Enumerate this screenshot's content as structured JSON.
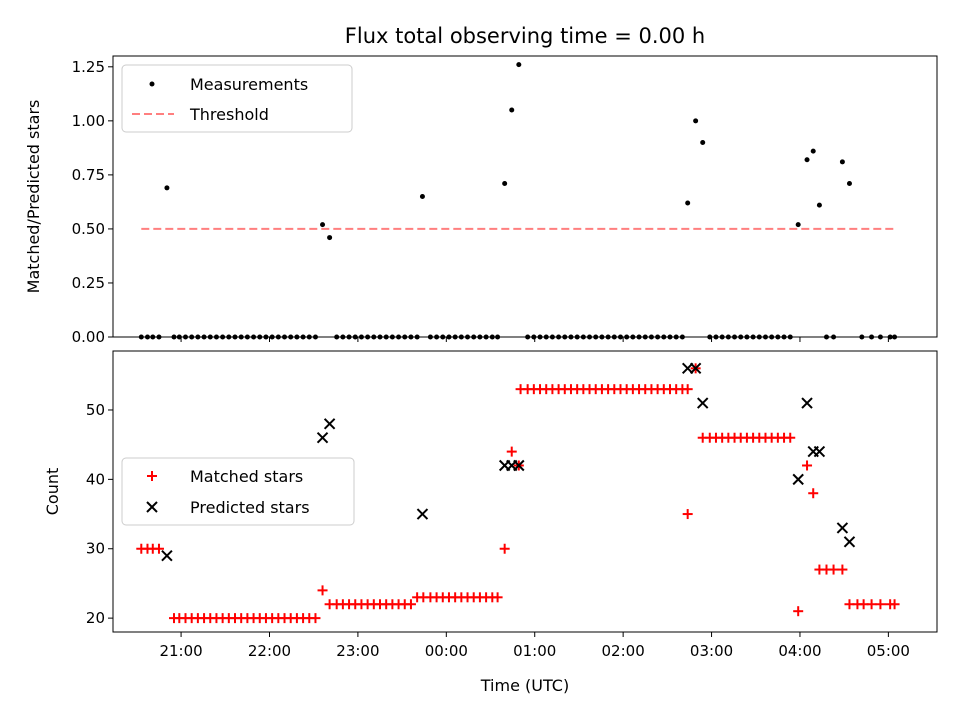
{
  "chart_data": [
    {
      "type": "scatter",
      "title": "Flux total observing time = 0.00 h",
      "xlabel": "",
      "ylabel": "Matched/Predicted stars",
      "ylim": [
        0,
        1.3
      ],
      "yticks": [
        "0.00",
        "0.25",
        "0.50",
        "0.75",
        "1.00",
        "1.25"
      ],
      "ytick_values": [
        0,
        0.25,
        0.5,
        0.75,
        1.0,
        1.25
      ],
      "x_unit": "hours since 20:00 UTC",
      "xlim": [
        0.23,
        9.55
      ],
      "legend": {
        "placement": "upper left",
        "entries": [
          "Measurements",
          "Threshold"
        ]
      },
      "series": [
        {
          "name": "Measurements",
          "marker": "dot",
          "color": "#000000",
          "points": [
            [
              0.55,
              0
            ],
            [
              0.62,
              0
            ],
            [
              0.68,
              0
            ],
            [
              0.75,
              0
            ],
            [
              0.84,
              0.69
            ],
            [
              0.92,
              0
            ],
            [
              0.98,
              0
            ],
            [
              1.05,
              0
            ],
            [
              1.12,
              0
            ],
            [
              1.19,
              0
            ],
            [
              1.26,
              0
            ],
            [
              1.33,
              0
            ],
            [
              1.4,
              0
            ],
            [
              1.47,
              0
            ],
            [
              1.54,
              0
            ],
            [
              1.61,
              0
            ],
            [
              1.68,
              0
            ],
            [
              1.75,
              0
            ],
            [
              1.82,
              0
            ],
            [
              1.89,
              0
            ],
            [
              1.96,
              0
            ],
            [
              2.03,
              0
            ],
            [
              2.1,
              0
            ],
            [
              2.17,
              0
            ],
            [
              2.24,
              0
            ],
            [
              2.31,
              0
            ],
            [
              2.38,
              0
            ],
            [
              2.45,
              0
            ],
            [
              2.52,
              0
            ],
            [
              2.6,
              0.52
            ],
            [
              2.68,
              0.46
            ],
            [
              2.76,
              0
            ],
            [
              2.83,
              0
            ],
            [
              2.9,
              0
            ],
            [
              2.97,
              0
            ],
            [
              3.04,
              0
            ],
            [
              3.11,
              0
            ],
            [
              3.18,
              0
            ],
            [
              3.25,
              0
            ],
            [
              3.32,
              0
            ],
            [
              3.39,
              0
            ],
            [
              3.46,
              0
            ],
            [
              3.53,
              0
            ],
            [
              3.6,
              0
            ],
            [
              3.67,
              0
            ],
            [
              3.73,
              0.65
            ],
            [
              3.82,
              0
            ],
            [
              3.89,
              0
            ],
            [
              3.96,
              0
            ],
            [
              4.03,
              0
            ],
            [
              4.1,
              0
            ],
            [
              4.17,
              0
            ],
            [
              4.24,
              0
            ],
            [
              4.31,
              0
            ],
            [
              4.38,
              0
            ],
            [
              4.45,
              0
            ],
            [
              4.52,
              0
            ],
            [
              4.58,
              0
            ],
            [
              4.66,
              0.71
            ],
            [
              4.74,
              1.05
            ],
            [
              4.82,
              1.26
            ],
            [
              4.92,
              0
            ],
            [
              4.99,
              0
            ],
            [
              5.06,
              0
            ],
            [
              5.13,
              0
            ],
            [
              5.2,
              0
            ],
            [
              5.27,
              0
            ],
            [
              5.34,
              0
            ],
            [
              5.41,
              0
            ],
            [
              5.48,
              0
            ],
            [
              5.55,
              0
            ],
            [
              5.62,
              0
            ],
            [
              5.69,
              0
            ],
            [
              5.76,
              0
            ],
            [
              5.83,
              0
            ],
            [
              5.9,
              0
            ],
            [
              5.97,
              0
            ],
            [
              6.04,
              0
            ],
            [
              6.11,
              0
            ],
            [
              6.18,
              0
            ],
            [
              6.25,
              0
            ],
            [
              6.32,
              0
            ],
            [
              6.39,
              0
            ],
            [
              6.46,
              0
            ],
            [
              6.53,
              0
            ],
            [
              6.6,
              0
            ],
            [
              6.67,
              0
            ],
            [
              6.73,
              0.62
            ],
            [
              6.82,
              1.0
            ],
            [
              6.9,
              0.9
            ],
            [
              6.98,
              0
            ],
            [
              7.05,
              0
            ],
            [
              7.12,
              0
            ],
            [
              7.19,
              0
            ],
            [
              7.26,
              0
            ],
            [
              7.33,
              0
            ],
            [
              7.4,
              0
            ],
            [
              7.47,
              0
            ],
            [
              7.54,
              0
            ],
            [
              7.61,
              0
            ],
            [
              7.68,
              0
            ],
            [
              7.75,
              0
            ],
            [
              7.82,
              0
            ],
            [
              7.89,
              0
            ],
            [
              7.98,
              0.52
            ],
            [
              8.08,
              0.82
            ],
            [
              8.15,
              0.86
            ],
            [
              8.22,
              0.61
            ],
            [
              8.3,
              0
            ],
            [
              8.38,
              0
            ],
            [
              8.48,
              0.81
            ],
            [
              8.56,
              0.71
            ],
            [
              8.7,
              0
            ],
            [
              8.81,
              0
            ],
            [
              8.91,
              0
            ],
            [
              9.02,
              0
            ],
            [
              9.07,
              0
            ]
          ]
        },
        {
          "name": "Threshold",
          "marker": "dashed-line",
          "color": "#ff7f7f",
          "x": [
            0.55,
            9.1
          ],
          "y": [
            0.5,
            0.5
          ]
        }
      ]
    },
    {
      "type": "scatter",
      "title": "",
      "xlabel": "Time (UTC)",
      "ylabel": "Count",
      "ylim": [
        18,
        58.5
      ],
      "yticks": [
        "20",
        "30",
        "40",
        "50"
      ],
      "ytick_values": [
        20,
        30,
        40,
        50
      ],
      "xticks": [
        "21:00",
        "22:00",
        "23:00",
        "00:00",
        "01:00",
        "02:00",
        "03:00",
        "04:00",
        "05:00"
      ],
      "xtick_values": [
        1,
        2,
        3,
        4,
        5,
        6,
        7,
        8,
        9
      ],
      "x_unit": "hours since 20:00 UTC",
      "xlim": [
        0.23,
        9.55
      ],
      "legend": {
        "placement": "center left",
        "entries": [
          "Matched stars",
          "Predicted stars"
        ]
      },
      "series": [
        {
          "name": "Matched stars",
          "marker": "plus",
          "color": "#ff0000",
          "points": [
            [
              0.55,
              30
            ],
            [
              0.62,
              30
            ],
            [
              0.68,
              30
            ],
            [
              0.75,
              30
            ],
            [
              0.92,
              20
            ],
            [
              0.98,
              20
            ],
            [
              1.05,
              20
            ],
            [
              1.12,
              20
            ],
            [
              1.19,
              20
            ],
            [
              1.26,
              20
            ],
            [
              1.33,
              20
            ],
            [
              1.4,
              20
            ],
            [
              1.47,
              20
            ],
            [
              1.54,
              20
            ],
            [
              1.61,
              20
            ],
            [
              1.68,
              20
            ],
            [
              1.75,
              20
            ],
            [
              1.82,
              20
            ],
            [
              1.89,
              20
            ],
            [
              1.96,
              20
            ],
            [
              2.03,
              20
            ],
            [
              2.1,
              20
            ],
            [
              2.17,
              20
            ],
            [
              2.24,
              20
            ],
            [
              2.31,
              20
            ],
            [
              2.38,
              20
            ],
            [
              2.45,
              20
            ],
            [
              2.52,
              20
            ],
            [
              2.6,
              24
            ],
            [
              2.68,
              22
            ],
            [
              2.76,
              22
            ],
            [
              2.83,
              22
            ],
            [
              2.9,
              22
            ],
            [
              2.97,
              22
            ],
            [
              3.04,
              22
            ],
            [
              3.11,
              22
            ],
            [
              3.18,
              22
            ],
            [
              3.25,
              22
            ],
            [
              3.32,
              22
            ],
            [
              3.39,
              22
            ],
            [
              3.46,
              22
            ],
            [
              3.53,
              22
            ],
            [
              3.6,
              22
            ],
            [
              3.67,
              23
            ],
            [
              3.74,
              23
            ],
            [
              3.82,
              23
            ],
            [
              3.89,
              23
            ],
            [
              3.96,
              23
            ],
            [
              4.03,
              23
            ],
            [
              4.1,
              23
            ],
            [
              4.17,
              23
            ],
            [
              4.24,
              23
            ],
            [
              4.31,
              23
            ],
            [
              4.38,
              23
            ],
            [
              4.45,
              23
            ],
            [
              4.52,
              23
            ],
            [
              4.58,
              23
            ],
            [
              4.66,
              30
            ],
            [
              4.74,
              44
            ],
            [
              4.82,
              42
            ],
            [
              4.84,
              53
            ],
            [
              4.92,
              53
            ],
            [
              4.99,
              53
            ],
            [
              5.06,
              53
            ],
            [
              5.13,
              53
            ],
            [
              5.2,
              53
            ],
            [
              5.27,
              53
            ],
            [
              5.34,
              53
            ],
            [
              5.41,
              53
            ],
            [
              5.48,
              53
            ],
            [
              5.55,
              53
            ],
            [
              5.62,
              53
            ],
            [
              5.69,
              53
            ],
            [
              5.76,
              53
            ],
            [
              5.83,
              53
            ],
            [
              5.9,
              53
            ],
            [
              5.97,
              53
            ],
            [
              6.04,
              53
            ],
            [
              6.11,
              53
            ],
            [
              6.18,
              53
            ],
            [
              6.25,
              53
            ],
            [
              6.32,
              53
            ],
            [
              6.39,
              53
            ],
            [
              6.46,
              53
            ],
            [
              6.53,
              53
            ],
            [
              6.6,
              53
            ],
            [
              6.67,
              53
            ],
            [
              6.73,
              53
            ],
            [
              6.73,
              35
            ],
            [
              6.82,
              56
            ],
            [
              6.9,
              46
            ],
            [
              6.98,
              46
            ],
            [
              7.05,
              46
            ],
            [
              7.12,
              46
            ],
            [
              7.19,
              46
            ],
            [
              7.26,
              46
            ],
            [
              7.33,
              46
            ],
            [
              7.4,
              46
            ],
            [
              7.47,
              46
            ],
            [
              7.54,
              46
            ],
            [
              7.61,
              46
            ],
            [
              7.68,
              46
            ],
            [
              7.75,
              46
            ],
            [
              7.82,
              46
            ],
            [
              7.89,
              46
            ],
            [
              7.98,
              21
            ],
            [
              8.08,
              42
            ],
            [
              8.15,
              38
            ],
            [
              8.22,
              27
            ],
            [
              8.3,
              27
            ],
            [
              8.38,
              27
            ],
            [
              8.48,
              27
            ],
            [
              8.56,
              22
            ],
            [
              8.65,
              22
            ],
            [
              8.72,
              22
            ],
            [
              8.81,
              22
            ],
            [
              8.91,
              22
            ],
            [
              9.02,
              22
            ],
            [
              9.07,
              22
            ]
          ]
        },
        {
          "name": "Predicted stars",
          "marker": "x",
          "color": "#000000",
          "points": [
            [
              0.84,
              29
            ],
            [
              2.6,
              46
            ],
            [
              2.68,
              48
            ],
            [
              3.73,
              35
            ],
            [
              4.66,
              42
            ],
            [
              4.74,
              42
            ],
            [
              4.82,
              42
            ],
            [
              6.73,
              56
            ],
            [
              6.82,
              56
            ],
            [
              6.9,
              51
            ],
            [
              7.98,
              40
            ],
            [
              8.08,
              51
            ],
            [
              8.15,
              44
            ],
            [
              8.22,
              44
            ],
            [
              8.48,
              33
            ],
            [
              8.56,
              31
            ]
          ]
        }
      ]
    }
  ]
}
